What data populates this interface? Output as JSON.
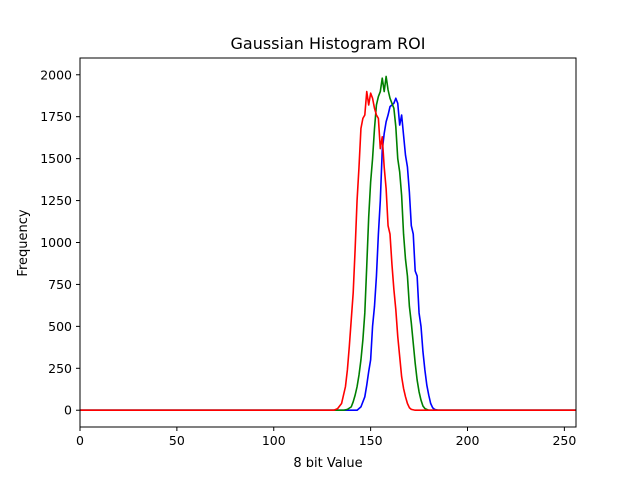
{
  "chart_data": {
    "type": "line",
    "title": "Gaussian Histogram ROI",
    "xlabel": "8 bit Value",
    "ylabel": "Frequency",
    "xlim": [
      0,
      256
    ],
    "ylim": [
      -100,
      2100
    ],
    "xticks": [
      0,
      50,
      100,
      150,
      200,
      250
    ],
    "yticks": [
      0,
      250,
      500,
      750,
      1000,
      1250,
      1500,
      1750,
      2000
    ],
    "grid": false,
    "series": [
      {
        "color": "#0000ff",
        "points": [
          [
            0,
            0
          ],
          [
            140,
            0
          ],
          [
            143,
            0
          ],
          [
            145,
            20
          ],
          [
            147,
            80
          ],
          [
            148,
            150
          ],
          [
            149,
            230
          ],
          [
            150,
            300
          ],
          [
            151,
            500
          ],
          [
            152,
            620
          ],
          [
            153,
            800
          ],
          [
            154,
            1050
          ],
          [
            155,
            1250
          ],
          [
            156,
            1550
          ],
          [
            157,
            1650
          ],
          [
            158,
            1720
          ],
          [
            159,
            1760
          ],
          [
            160,
            1810
          ],
          [
            161,
            1820
          ],
          [
            162,
            1830
          ],
          [
            163,
            1860
          ],
          [
            164,
            1830
          ],
          [
            165,
            1700
          ],
          [
            166,
            1760
          ],
          [
            167,
            1640
          ],
          [
            168,
            1520
          ],
          [
            169,
            1450
          ],
          [
            170,
            1300
          ],
          [
            171,
            1100
          ],
          [
            172,
            1050
          ],
          [
            173,
            830
          ],
          [
            174,
            800
          ],
          [
            175,
            580
          ],
          [
            176,
            500
          ],
          [
            177,
            350
          ],
          [
            178,
            240
          ],
          [
            179,
            150
          ],
          [
            180,
            90
          ],
          [
            181,
            40
          ],
          [
            182,
            15
          ],
          [
            183,
            5
          ],
          [
            185,
            0
          ],
          [
            256,
            0
          ]
        ]
      },
      {
        "color": "#008000",
        "points": [
          [
            0,
            0
          ],
          [
            136,
            0
          ],
          [
            138,
            5
          ],
          [
            140,
            20
          ],
          [
            141,
            50
          ],
          [
            142,
            90
          ],
          [
            143,
            140
          ],
          [
            144,
            210
          ],
          [
            145,
            300
          ],
          [
            146,
            420
          ],
          [
            147,
            580
          ],
          [
            148,
            860
          ],
          [
            149,
            1150
          ],
          [
            150,
            1360
          ],
          [
            151,
            1500
          ],
          [
            152,
            1680
          ],
          [
            153,
            1820
          ],
          [
            154,
            1870
          ],
          [
            155,
            1900
          ],
          [
            156,
            1980
          ],
          [
            157,
            1900
          ],
          [
            158,
            1990
          ],
          [
            159,
            1910
          ],
          [
            160,
            1860
          ],
          [
            161,
            1830
          ],
          [
            162,
            1800
          ],
          [
            163,
            1690
          ],
          [
            164,
            1500
          ],
          [
            165,
            1420
          ],
          [
            166,
            1280
          ],
          [
            167,
            1050
          ],
          [
            168,
            900
          ],
          [
            169,
            800
          ],
          [
            170,
            620
          ],
          [
            171,
            520
          ],
          [
            172,
            400
          ],
          [
            173,
            280
          ],
          [
            174,
            180
          ],
          [
            175,
            110
          ],
          [
            176,
            60
          ],
          [
            177,
            25
          ],
          [
            178,
            10
          ],
          [
            180,
            0
          ],
          [
            256,
            0
          ]
        ]
      },
      {
        "color": "#ff0000",
        "points": [
          [
            0,
            0
          ],
          [
            131,
            0
          ],
          [
            133,
            10
          ],
          [
            135,
            40
          ],
          [
            136,
            90
          ],
          [
            137,
            140
          ],
          [
            138,
            240
          ],
          [
            139,
            380
          ],
          [
            140,
            540
          ],
          [
            141,
            700
          ],
          [
            142,
            960
          ],
          [
            143,
            1250
          ],
          [
            144,
            1450
          ],
          [
            145,
            1680
          ],
          [
            146,
            1740
          ],
          [
            147,
            1760
          ],
          [
            148,
            1900
          ],
          [
            149,
            1820
          ],
          [
            150,
            1890
          ],
          [
            151,
            1860
          ],
          [
            152,
            1800
          ],
          [
            153,
            1760
          ],
          [
            154,
            1740
          ],
          [
            155,
            1560
          ],
          [
            156,
            1630
          ],
          [
            157,
            1450
          ],
          [
            158,
            1320
          ],
          [
            159,
            1100
          ],
          [
            160,
            1050
          ],
          [
            161,
            870
          ],
          [
            162,
            720
          ],
          [
            163,
            600
          ],
          [
            164,
            440
          ],
          [
            165,
            320
          ],
          [
            166,
            200
          ],
          [
            167,
            130
          ],
          [
            168,
            80
          ],
          [
            169,
            40
          ],
          [
            170,
            15
          ],
          [
            171,
            5
          ],
          [
            173,
            0
          ],
          [
            256,
            0
          ]
        ]
      }
    ]
  }
}
